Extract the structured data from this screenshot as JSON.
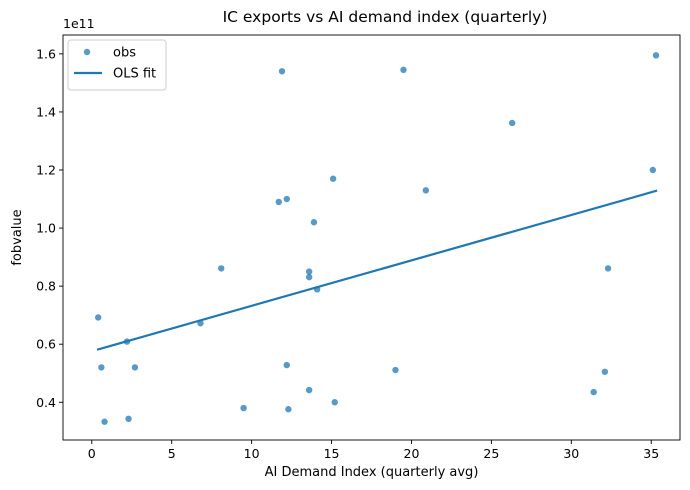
{
  "chart_data": {
    "type": "scatter",
    "title": "IC exports vs AI demand index (quarterly)",
    "xlabel": "AI Demand Index (quarterly avg)",
    "ylabel": "fobvalue",
    "y_offset_label": "1e11",
    "xlim": [
      -1.8,
      36.8
    ],
    "ylim": [
      0.27,
      1.665
    ],
    "xticks": [
      0,
      5,
      10,
      15,
      20,
      25,
      30,
      35
    ],
    "xtick_labels": [
      "0",
      "5",
      "10",
      "15",
      "20",
      "25",
      "30",
      "35"
    ],
    "yticks": [
      0.4,
      0.6,
      0.8,
      1.0,
      1.2,
      1.4,
      1.6
    ],
    "ytick_labels": [
      "0.4",
      "0.6",
      "0.8",
      "1.0",
      "1.2",
      "1.4",
      "1.6"
    ],
    "legend": {
      "placement": "top-left",
      "entries": [
        "obs",
        "OLS fit"
      ]
    },
    "series": [
      {
        "name": "obs",
        "kind": "scatter",
        "color": "#1f77b4",
        "points": [
          {
            "x": 0.4,
            "y": 0.692
          },
          {
            "x": 0.6,
            "y": 0.52
          },
          {
            "x": 0.8,
            "y": 0.333
          },
          {
            "x": 2.2,
            "y": 0.609
          },
          {
            "x": 2.3,
            "y": 0.343
          },
          {
            "x": 2.7,
            "y": 0.52
          },
          {
            "x": 6.8,
            "y": 0.672
          },
          {
            "x": 8.1,
            "y": 0.861
          },
          {
            "x": 9.5,
            "y": 0.38
          },
          {
            "x": 11.7,
            "y": 1.09
          },
          {
            "x": 11.9,
            "y": 1.54
          },
          {
            "x": 12.2,
            "y": 1.1
          },
          {
            "x": 12.2,
            "y": 0.528
          },
          {
            "x": 12.3,
            "y": 0.376
          },
          {
            "x": 13.6,
            "y": 0.85
          },
          {
            "x": 13.6,
            "y": 0.831
          },
          {
            "x": 13.6,
            "y": 0.442
          },
          {
            "x": 13.9,
            "y": 1.02
          },
          {
            "x": 14.1,
            "y": 0.789
          },
          {
            "x": 15.1,
            "y": 1.17
          },
          {
            "x": 15.2,
            "y": 0.4
          },
          {
            "x": 19.0,
            "y": 0.511
          },
          {
            "x": 19.5,
            "y": 1.545
          },
          {
            "x": 20.9,
            "y": 1.13
          },
          {
            "x": 26.3,
            "y": 1.362
          },
          {
            "x": 31.4,
            "y": 0.435
          },
          {
            "x": 32.1,
            "y": 0.505
          },
          {
            "x": 32.3,
            "y": 0.861
          },
          {
            "x": 35.1,
            "y": 1.2
          },
          {
            "x": 35.3,
            "y": 1.595
          }
        ]
      },
      {
        "name": "OLS fit",
        "kind": "line",
        "color": "#1f77b4",
        "points": [
          {
            "x": 0.4,
            "y": 0.582
          },
          {
            "x": 35.3,
            "y": 1.128
          }
        ]
      }
    ]
  }
}
